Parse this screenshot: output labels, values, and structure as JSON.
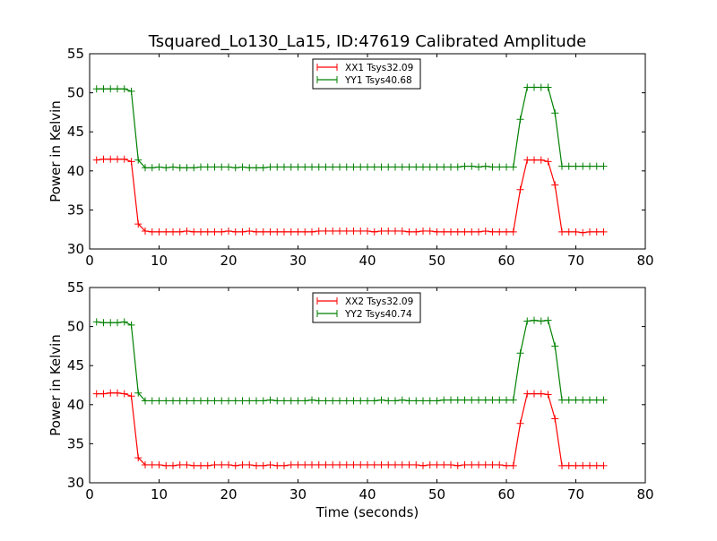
{
  "chart_data": [
    {
      "type": "line",
      "title": "Tsquared_Lo130_La15, ID:47619 Calibrated Amplitude",
      "xlabel": "",
      "ylabel": "Power in Kelvin",
      "xlim": [
        0,
        80
      ],
      "ylim": [
        30,
        55
      ],
      "xticks": [
        0,
        10,
        20,
        30,
        40,
        50,
        60,
        70,
        80
      ],
      "yticks": [
        30,
        35,
        40,
        45,
        50,
        55
      ],
      "grid": false,
      "legend_position": "top-center",
      "x": [
        1,
        2,
        3,
        4,
        5,
        6,
        7,
        8,
        9,
        10,
        11,
        12,
        13,
        14,
        15,
        16,
        17,
        18,
        19,
        20,
        21,
        22,
        23,
        24,
        25,
        26,
        27,
        28,
        29,
        30,
        31,
        32,
        33,
        34,
        35,
        36,
        37,
        38,
        39,
        40,
        41,
        42,
        43,
        44,
        45,
        46,
        47,
        48,
        49,
        50,
        51,
        52,
        53,
        54,
        55,
        56,
        57,
        58,
        59,
        60,
        61,
        62,
        63,
        64,
        65,
        66,
        67,
        68,
        69,
        70,
        71,
        72,
        73,
        74
      ],
      "series": [
        {
          "name": "XX1 Tsys32.09",
          "color": "#ff0000",
          "values": [
            41.4,
            41.5,
            41.5,
            41.5,
            41.5,
            41.2,
            33.2,
            32.3,
            32.2,
            32.2,
            32.2,
            32.2,
            32.2,
            32.3,
            32.2,
            32.2,
            32.2,
            32.2,
            32.2,
            32.3,
            32.2,
            32.2,
            32.3,
            32.2,
            32.2,
            32.2,
            32.2,
            32.2,
            32.2,
            32.2,
            32.2,
            32.2,
            32.3,
            32.3,
            32.3,
            32.3,
            32.3,
            32.3,
            32.3,
            32.3,
            32.2,
            32.3,
            32.3,
            32.3,
            32.3,
            32.2,
            32.2,
            32.3,
            32.3,
            32.2,
            32.2,
            32.2,
            32.2,
            32.2,
            32.2,
            32.2,
            32.3,
            32.2,
            32.2,
            32.2,
            32.2,
            37.6,
            41.4,
            41.4,
            41.4,
            41.2,
            38.2,
            32.2,
            32.2,
            32.2,
            32.1,
            32.2,
            32.2,
            32.2
          ]
        },
        {
          "name": "YY1 Tsys40.68",
          "color": "#008000",
          "values": [
            50.5,
            50.5,
            50.5,
            50.5,
            50.5,
            50.2,
            41.4,
            40.4,
            40.4,
            40.5,
            40.4,
            40.5,
            40.4,
            40.4,
            40.4,
            40.5,
            40.5,
            40.5,
            40.5,
            40.5,
            40.4,
            40.5,
            40.4,
            40.4,
            40.4,
            40.5,
            40.5,
            40.5,
            40.5,
            40.5,
            40.5,
            40.5,
            40.5,
            40.5,
            40.5,
            40.5,
            40.5,
            40.5,
            40.5,
            40.5,
            40.5,
            40.5,
            40.5,
            40.5,
            40.5,
            40.5,
            40.5,
            40.5,
            40.5,
            40.5,
            40.5,
            40.5,
            40.5,
            40.6,
            40.6,
            40.5,
            40.6,
            40.5,
            40.5,
            40.5,
            40.5,
            46.6,
            50.7,
            50.7,
            50.7,
            50.7,
            47.4,
            40.6,
            40.6,
            40.6,
            40.6,
            40.6,
            40.6,
            40.6
          ]
        }
      ]
    },
    {
      "type": "line",
      "title": "",
      "xlabel": "Time (seconds)",
      "ylabel": "Power in Kelvin",
      "xlim": [
        0,
        80
      ],
      "ylim": [
        30,
        55
      ],
      "xticks": [
        0,
        10,
        20,
        30,
        40,
        50,
        60,
        70,
        80
      ],
      "yticks": [
        30,
        35,
        40,
        45,
        50,
        55
      ],
      "grid": false,
      "legend_position": "top-center",
      "x": [
        1,
        2,
        3,
        4,
        5,
        6,
        7,
        8,
        9,
        10,
        11,
        12,
        13,
        14,
        15,
        16,
        17,
        18,
        19,
        20,
        21,
        22,
        23,
        24,
        25,
        26,
        27,
        28,
        29,
        30,
        31,
        32,
        33,
        34,
        35,
        36,
        37,
        38,
        39,
        40,
        41,
        42,
        43,
        44,
        45,
        46,
        47,
        48,
        49,
        50,
        51,
        52,
        53,
        54,
        55,
        56,
        57,
        58,
        59,
        60,
        61,
        62,
        63,
        64,
        65,
        66,
        67,
        68,
        69,
        70,
        71,
        72,
        73,
        74
      ],
      "series": [
        {
          "name": "XX2 Tsys32.09",
          "color": "#ff0000",
          "values": [
            41.4,
            41.4,
            41.5,
            41.5,
            41.4,
            41.1,
            33.2,
            32.3,
            32.3,
            32.3,
            32.2,
            32.2,
            32.3,
            32.3,
            32.2,
            32.2,
            32.2,
            32.3,
            32.3,
            32.3,
            32.2,
            32.3,
            32.3,
            32.2,
            32.2,
            32.3,
            32.2,
            32.2,
            32.3,
            32.3,
            32.3,
            32.3,
            32.3,
            32.3,
            32.3,
            32.3,
            32.3,
            32.3,
            32.3,
            32.3,
            32.3,
            32.3,
            32.3,
            32.3,
            32.3,
            32.3,
            32.3,
            32.2,
            32.3,
            32.3,
            32.3,
            32.3,
            32.2,
            32.3,
            32.3,
            32.3,
            32.3,
            32.3,
            32.3,
            32.2,
            32.2,
            37.6,
            41.4,
            41.4,
            41.4,
            41.3,
            38.2,
            32.2,
            32.2,
            32.2,
            32.2,
            32.2,
            32.2,
            32.2
          ]
        },
        {
          "name": "YY2 Tsys40.74",
          "color": "#008000",
          "values": [
            50.6,
            50.5,
            50.5,
            50.5,
            50.6,
            50.2,
            41.5,
            40.5,
            40.5,
            40.5,
            40.5,
            40.5,
            40.5,
            40.5,
            40.5,
            40.5,
            40.5,
            40.5,
            40.5,
            40.5,
            40.5,
            40.5,
            40.5,
            40.5,
            40.5,
            40.6,
            40.5,
            40.5,
            40.5,
            40.5,
            40.5,
            40.6,
            40.5,
            40.5,
            40.5,
            40.5,
            40.5,
            40.5,
            40.5,
            40.5,
            40.5,
            40.6,
            40.5,
            40.5,
            40.6,
            40.5,
            40.5,
            40.5,
            40.5,
            40.5,
            40.6,
            40.6,
            40.6,
            40.6,
            40.6,
            40.6,
            40.6,
            40.6,
            40.6,
            40.6,
            40.6,
            46.6,
            50.7,
            50.8,
            50.7,
            50.8,
            47.5,
            40.6,
            40.6,
            40.6,
            40.6,
            40.6,
            40.6,
            40.6
          ]
        }
      ]
    }
  ]
}
